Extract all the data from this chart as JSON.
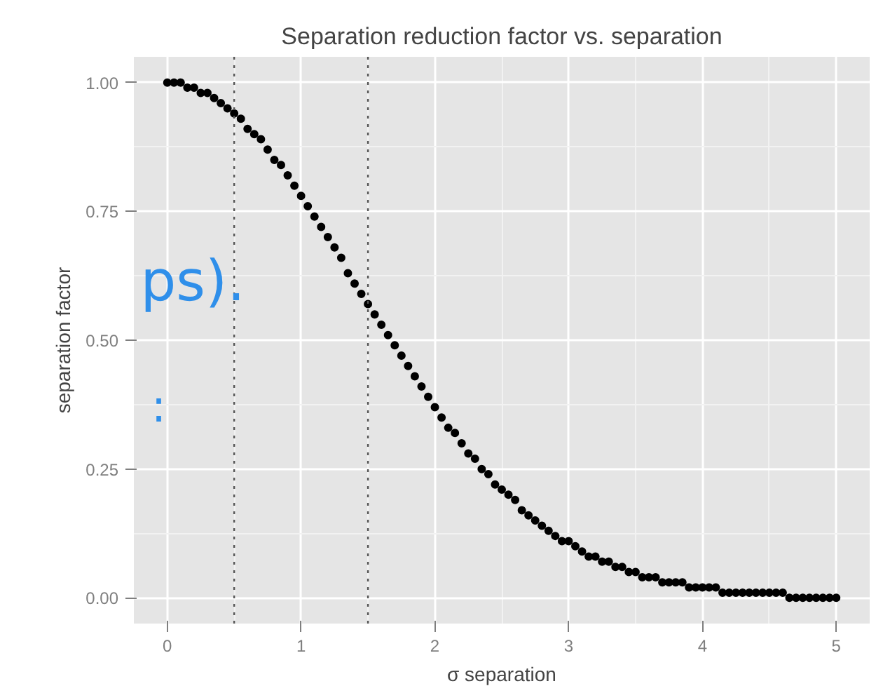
{
  "chart_data": {
    "type": "scatter",
    "title": "Separation reduction factor vs. separation",
    "xlabel": "σ separation",
    "ylabel": "separation factor",
    "x": [
      0,
      0.05,
      0.1,
      0.15,
      0.2,
      0.25,
      0.3,
      0.35,
      0.4,
      0.45,
      0.5,
      0.55,
      0.6,
      0.65,
      0.7,
      0.75,
      0.8,
      0.85,
      0.9,
      0.95,
      1,
      1.05,
      1.1,
      1.15,
      1.2,
      1.25,
      1.3,
      1.35,
      1.4,
      1.45,
      1.5,
      1.55,
      1.6,
      1.65,
      1.7,
      1.75,
      1.8,
      1.85,
      1.9,
      1.95,
      2,
      2.05,
      2.1,
      2.15,
      2.2,
      2.25,
      2.3,
      2.35,
      2.4,
      2.45,
      2.5,
      2.55,
      2.6,
      2.65,
      2.7,
      2.75,
      2.8,
      2.85,
      2.9,
      2.95,
      3,
      3.05,
      3.1,
      3.15,
      3.2,
      3.25,
      3.3,
      3.35,
      3.4,
      3.45,
      3.5,
      3.55,
      3.6,
      3.65,
      3.7,
      3.75,
      3.8,
      3.85,
      3.9,
      3.95,
      4,
      4.05,
      4.1,
      4.15,
      4.2,
      4.25,
      4.3,
      4.35,
      4.4,
      4.45,
      4.5,
      4.55,
      4.6,
      4.65,
      4.7,
      4.75,
      4.8,
      4.85,
      4.9,
      4.95,
      5
    ],
    "series": [
      {
        "color": "#000000",
        "values": [
          1,
          1,
          1,
          0.99,
          0.99,
          0.98,
          0.98,
          0.97,
          0.96,
          0.95,
          0.94,
          0.93,
          0.91,
          0.9,
          0.89,
          0.87,
          0.85,
          0.84,
          0.82,
          0.8,
          0.78,
          0.76,
          0.74,
          0.72,
          0.7,
          0.68,
          0.66,
          0.63,
          0.61,
          0.59,
          0.57,
          0.55,
          0.53,
          0.51,
          0.49,
          0.47,
          0.45,
          0.43,
          0.41,
          0.39,
          0.37,
          0.35,
          0.33,
          0.32,
          0.3,
          0.28,
          0.27,
          0.25,
          0.24,
          0.22,
          0.21,
          0.2,
          0.19,
          0.17,
          0.16,
          0.15,
          0.14,
          0.13,
          0.12,
          0.11,
          0.11,
          0.1,
          0.09,
          0.08,
          0.08,
          0.07,
          0.07,
          0.06,
          0.06,
          0.05,
          0.05,
          0.04,
          0.04,
          0.04,
          0.03,
          0.03,
          0.03,
          0.03,
          0.02,
          0.02,
          0.02,
          0.02,
          0.02,
          0.01,
          0.01,
          0.01,
          0.01,
          0.01,
          0.01,
          0.01,
          0.01,
          0.01,
          0.01,
          0,
          0,
          0,
          0,
          0,
          0,
          0,
          0
        ]
      }
    ],
    "xlim": [
      -0.25,
      5.25
    ],
    "ylim": [
      -0.05,
      1.05
    ],
    "xticks": [
      0,
      1,
      2,
      3,
      4,
      5
    ],
    "yticks": [
      {
        "value": 0,
        "label": "0.00"
      },
      {
        "value": 0.25,
        "label": "0.25"
      },
      {
        "value": 0.5,
        "label": "0.50"
      },
      {
        "value": 0.75,
        "label": "0.75"
      },
      {
        "value": 1,
        "label": "1.00"
      }
    ],
    "ref_lines": [
      {
        "axis": "x",
        "value": 0.5,
        "line_style": "dotted",
        "color": "#555555"
      },
      {
        "axis": "x",
        "value": 1.5,
        "line_style": "dotted",
        "color": "#555555"
      }
    ],
    "annotations": [
      "ps).",
      ":"
    ],
    "grid": true,
    "marker": "circle"
  }
}
